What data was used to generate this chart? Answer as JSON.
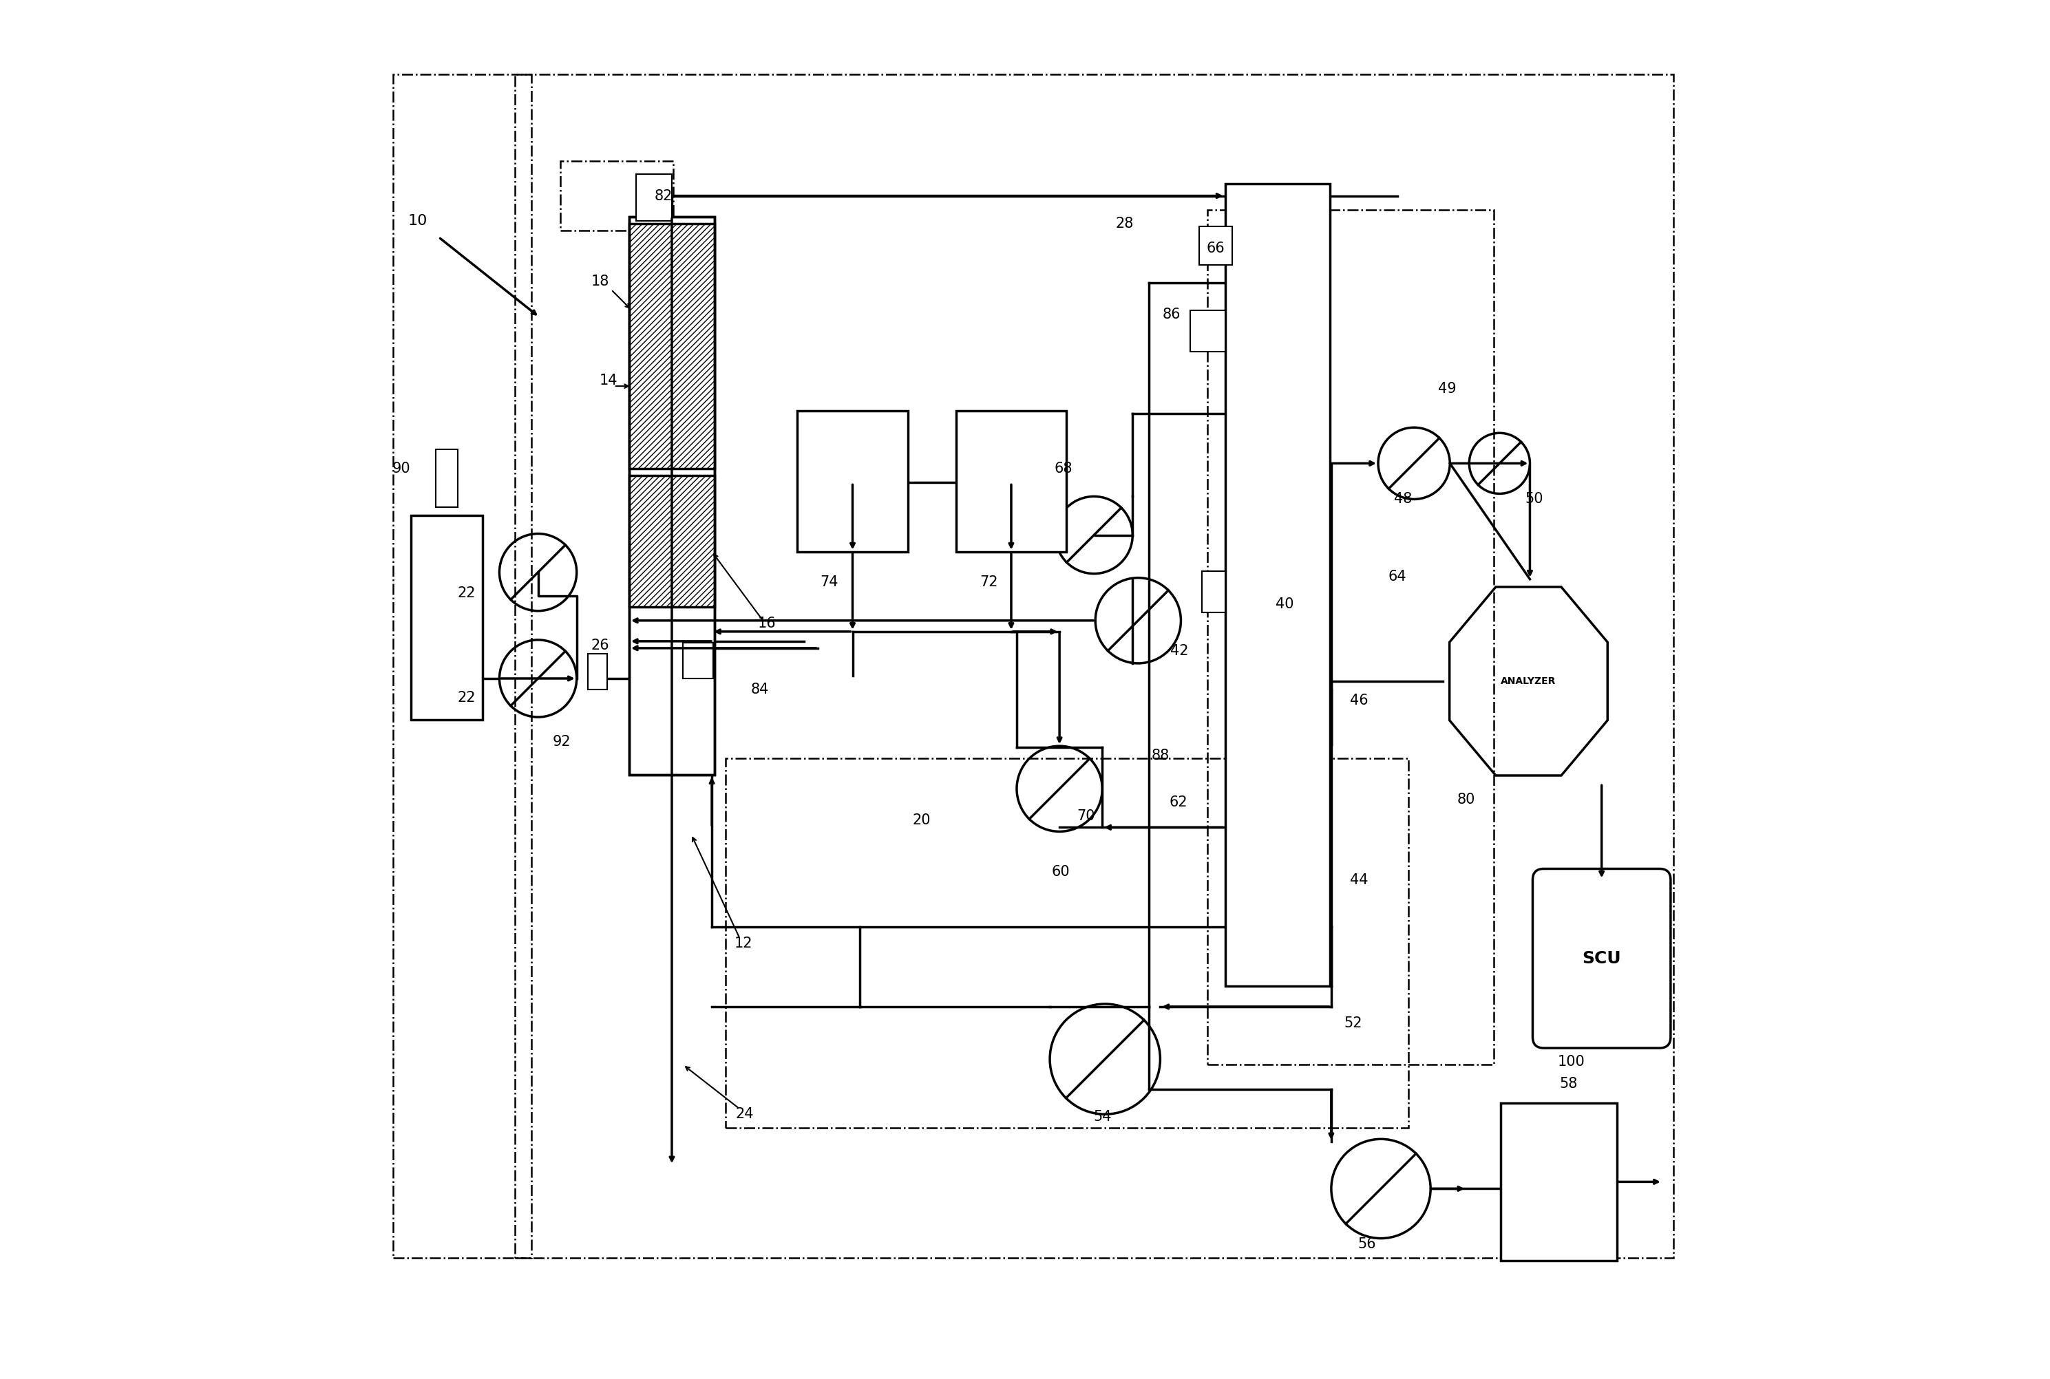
{
  "bg_color": "#ffffff",
  "line_color": "#000000",
  "lw_main": 2.5,
  "lw_thin": 1.5,
  "lw_dash": 1.8,
  "label_fontsize": 15,
  "scu_text": "SCU",
  "analyzer_text": "ANALYZER"
}
